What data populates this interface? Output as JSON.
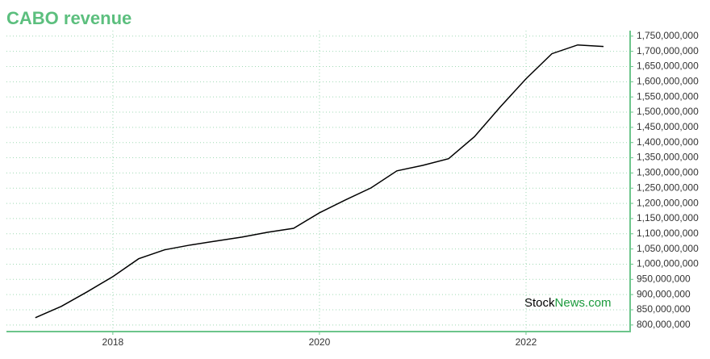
{
  "chart_data": {
    "type": "line",
    "title": "CABO revenue",
    "x": [
      2017.25,
      2017.5,
      2017.75,
      2018.0,
      2018.25,
      2018.5,
      2018.75,
      2019.0,
      2019.25,
      2019.5,
      2019.75,
      2020.0,
      2020.25,
      2020.5,
      2020.75,
      2021.0,
      2021.25,
      2021.5,
      2021.75,
      2022.0,
      2022.25,
      2022.5,
      2022.75
    ],
    "values": [
      824000000,
      861000000,
      909000000,
      959000000,
      1018000000,
      1047000000,
      1063000000,
      1076000000,
      1089000000,
      1105000000,
      1118000000,
      1169000000,
      1211000000,
      1251000000,
      1307000000,
      1325000000,
      1347000000,
      1419000000,
      1517000000,
      1610000000,
      1692000000,
      1721000000,
      1716000000
    ],
    "color": "#000000",
    "xlim": [
      2016.97,
      2023.0
    ],
    "xticks": [
      2018,
      2020,
      2022
    ],
    "ylim": [
      781000000,
      1768000000
    ],
    "yticks": [
      {
        "value": 800000000,
        "label": "800,000,000"
      },
      {
        "value": 850000000,
        "label": "850,000,000"
      },
      {
        "value": 900000000,
        "label": "900,000,000"
      },
      {
        "value": 950000000,
        "label": "950,000,000"
      },
      {
        "value": 1000000000,
        "label": "1,000,000,000"
      },
      {
        "value": 1050000000,
        "label": "1,050,000,000"
      },
      {
        "value": 1100000000,
        "label": "1,100,000,000"
      },
      {
        "value": 1150000000,
        "label": "1,150,000,000"
      },
      {
        "value": 1200000000,
        "label": "1,200,000,000"
      },
      {
        "value": 1250000000,
        "label": "1,250,000,000"
      },
      {
        "value": 1300000000,
        "label": "1,300,000,000"
      },
      {
        "value": 1350000000,
        "label": "1,350,000,000"
      },
      {
        "value": 1400000000,
        "label": "1,400,000,000"
      },
      {
        "value": 1450000000,
        "label": "1,450,000,000"
      },
      {
        "value": 1500000000,
        "label": "1,500,000,000"
      },
      {
        "value": 1550000000,
        "label": "1,550,000,000"
      },
      {
        "value": 1600000000,
        "label": "1,600,000,000"
      },
      {
        "value": 1650000000,
        "label": "1,650,000,000"
      },
      {
        "value": 1700000000,
        "label": "1,700,000,000"
      },
      {
        "value": 1750000000,
        "label": "1,750,000,000"
      }
    ],
    "grid": true,
    "axis_color": "#6cc58b",
    "watermark": [
      "Stock",
      "News.com"
    ]
  }
}
